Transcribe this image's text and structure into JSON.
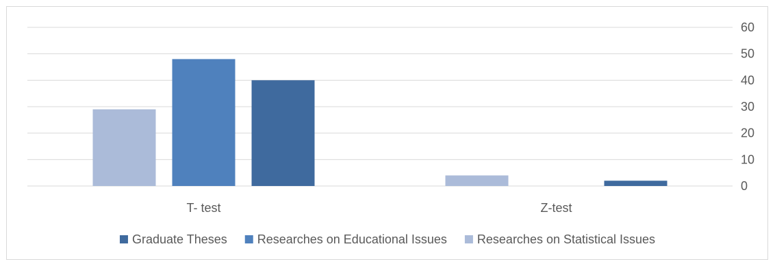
{
  "chart_data": {
    "type": "bar",
    "categories": [
      "T- test",
      "Z-test"
    ],
    "series": [
      {
        "name": "Researches on Statistical Issues",
        "values": [
          29,
          4
        ],
        "color": "#abbbd9"
      },
      {
        "name": "Researches on Educational Issues",
        "values": [
          48,
          0
        ],
        "color": "#4f81bd"
      },
      {
        "name": "Graduate Theses",
        "values": [
          40,
          2
        ],
        "color": "#3f6a9e"
      }
    ],
    "legend_order": [
      2,
      1,
      0
    ],
    "yticks": [
      0,
      10,
      20,
      30,
      40,
      50,
      60
    ],
    "ylim": [
      0,
      60
    ],
    "y_axis_side": "right",
    "grid": true,
    "legend_position": "bottom",
    "gridline_color": "#d9d9d9"
  }
}
